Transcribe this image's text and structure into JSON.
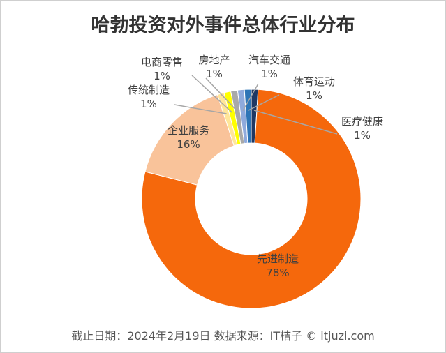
{
  "chart_data": {
    "type": "pie",
    "variant": "donut",
    "title": "哈勃投资对外事件总体行业分布",
    "categories": [
      "先进制造",
      "企业服务",
      "传统制造",
      "电商零售",
      "房地产",
      "汽车交通",
      "体育运动",
      "医疗健康"
    ],
    "values": [
      78,
      16,
      1,
      1,
      1,
      1,
      1,
      1
    ],
    "value_labels": [
      "78%",
      "16%",
      "1%",
      "1%",
      "1%",
      "1%",
      "1%",
      "1%"
    ],
    "colors": [
      "#F5680C",
      "#F9C39A",
      "#FFE699",
      "#FFFF00",
      "#A9A9A9",
      "#8FAADC",
      "#2E75B6",
      "#1F3864"
    ]
  },
  "footer": "截止日期：2024年2月19日    数据来源：IT桔子 © itjuzi.com"
}
